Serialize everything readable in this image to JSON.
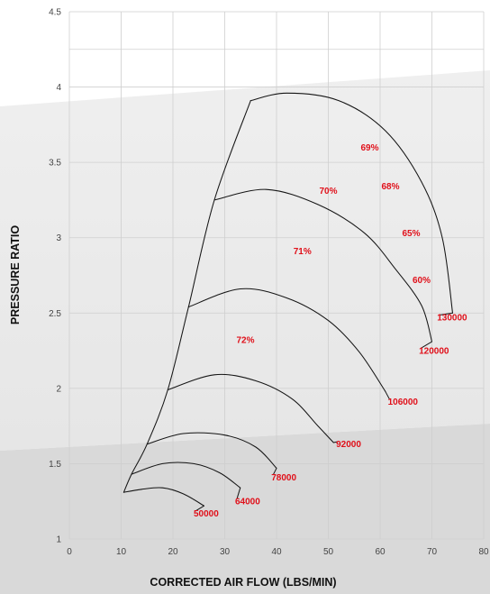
{
  "chart_data": {
    "type": "line",
    "xlabel": "CORRECTED AIR FLOW (LBS/MIN)",
    "ylabel": "PRESSURE RATIO",
    "xlim": [
      0,
      80
    ],
    "ylim": [
      1,
      4.5
    ],
    "x_ticks": [
      "0",
      "10",
      "20",
      "30",
      "40",
      "50",
      "60",
      "70",
      "80"
    ],
    "y_ticks": [
      "1",
      "1.5",
      "2",
      "2.5",
      "3",
      "3.5",
      "4",
      "4.5"
    ],
    "grid": true,
    "speed_lines": [
      {
        "label": "50000",
        "points": [
          [
            10.5,
            1.31
          ],
          [
            14,
            1.33
          ],
          [
            18,
            1.34
          ],
          [
            22,
            1.3
          ],
          [
            26,
            1.22
          ]
        ],
        "label_at": [
          24,
          1.15
        ]
      },
      {
        "label": "64000",
        "points": [
          [
            12,
            1.43
          ],
          [
            18,
            1.5
          ],
          [
            24,
            1.5
          ],
          [
            29,
            1.44
          ],
          [
            33,
            1.34
          ]
        ],
        "label_at": [
          32,
          1.23
        ]
      },
      {
        "label": "78000",
        "points": [
          [
            15,
            1.63
          ],
          [
            22,
            1.7
          ],
          [
            30,
            1.69
          ],
          [
            36,
            1.61
          ],
          [
            40,
            1.47
          ]
        ],
        "label_at": [
          39,
          1.39
        ]
      },
      {
        "label": "92000",
        "points": [
          [
            19,
            1.99
          ],
          [
            28,
            2.09
          ],
          [
            36,
            2.05
          ],
          [
            43,
            1.93
          ],
          [
            48,
            1.75
          ],
          [
            51,
            1.64
          ]
        ],
        "label_at": [
          51.5,
          1.61
        ]
      },
      {
        "label": "106000",
        "points": [
          [
            23,
            2.54
          ],
          [
            33,
            2.66
          ],
          [
            42,
            2.6
          ],
          [
            50,
            2.45
          ],
          [
            56,
            2.24
          ],
          [
            61,
            1.98
          ]
        ],
        "label_at": [
          61.5,
          1.89
        ]
      },
      {
        "label": "120000",
        "points": [
          [
            28,
            3.25
          ],
          [
            38,
            3.32
          ],
          [
            48,
            3.22
          ],
          [
            57,
            3.03
          ],
          [
            63,
            2.79
          ],
          [
            68,
            2.55
          ],
          [
            70,
            2.31
          ]
        ],
        "label_at": [
          67.5,
          2.23
        ]
      },
      {
        "label": "130000",
        "points": [
          [
            35,
            3.91
          ],
          [
            42,
            3.96
          ],
          [
            52,
            3.91
          ],
          [
            61,
            3.71
          ],
          [
            68,
            3.37
          ],
          [
            72,
            3.0
          ],
          [
            74,
            2.5
          ]
        ],
        "label_at": [
          71,
          2.45
        ]
      }
    ],
    "surge_line": [
      [
        10.5,
        1.31
      ],
      [
        12,
        1.43
      ],
      [
        15,
        1.63
      ],
      [
        19,
        1.99
      ],
      [
        23,
        2.54
      ],
      [
        28,
        3.25
      ],
      [
        35,
        3.91
      ]
    ],
    "efficiency_islands": [
      {
        "label": "72%",
        "label_at": [
          34,
          2.3
        ]
      },
      {
        "label": "71%",
        "label_at": [
          45,
          2.89
        ]
      },
      {
        "label": "70%",
        "label_at": [
          50,
          3.29
        ]
      },
      {
        "label": "69%",
        "label_at": [
          58,
          3.58
        ]
      },
      {
        "label": "68%",
        "label_at": [
          62,
          3.32
        ]
      },
      {
        "label": "65%",
        "label_at": [
          66,
          3.01
        ]
      },
      {
        "label": "60%",
        "label_at": [
          68,
          2.7
        ]
      }
    ]
  }
}
